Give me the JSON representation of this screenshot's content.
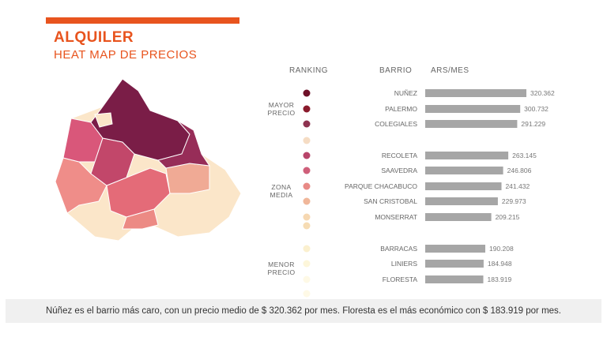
{
  "header": {
    "title": "ALQUILER",
    "subtitle": "HEAT MAP DE PRECIOS"
  },
  "columns": {
    "ranking": "RANKING",
    "barrio": "BARRIO",
    "unit": "ARS/MES"
  },
  "zones": [
    {
      "label": "MAYOR PRECIO"
    },
    {
      "label": "ZONA MEDIA"
    },
    {
      "label": "MENOR PRECIO"
    }
  ],
  "colors": {
    "accent": "#e8541e",
    "bar": "#a6a6a6",
    "scale": [
      "#6e1028",
      "#8a1a2c",
      "#8e3350",
      "#b8456a",
      "#cf5f7a",
      "#e88a86",
      "#f0b79a",
      "#f6d8b2",
      "#fbf0cf",
      "#fdf6da",
      "#fef9e6"
    ]
  },
  "chart_data": {
    "type": "bar",
    "orientation": "horizontal",
    "categories": [
      "NUÑEZ",
      "PALERMO",
      "COLEGIALES",
      "RECOLETA",
      "SAAVEDRA",
      "PARQUE CHACABUCO",
      "SAN CRISTOBAL",
      "MONSERRAT",
      "BARRACAS",
      "LINIERS",
      "FLORESTA"
    ],
    "values": [
      320362,
      300732,
      291229,
      263145,
      246806,
      241432,
      229973,
      209215,
      190208,
      184948,
      183919
    ],
    "value_labels": [
      "320.362",
      "300.732",
      "291.229",
      "263.145",
      "246.806",
      "241.432",
      "229.973",
      "209.215",
      "190.208",
      "184.948",
      "183.919"
    ],
    "xlim": [
      0,
      320362
    ]
  },
  "footer": {
    "text": "Núñez es el barrio más caro, con un precio medio de $ 320.362 por mes. Floresta es el más económico con $ 183.919 por mes."
  }
}
